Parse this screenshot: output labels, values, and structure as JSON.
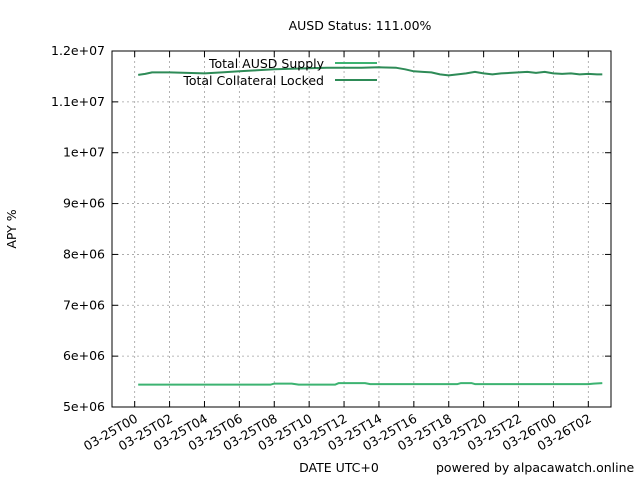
{
  "chart_data": {
    "type": "line",
    "title": "AUSD Status: 111.00%",
    "xlabel": "DATE UTC+0",
    "ylabel": "APY %",
    "footer": "powered by alpacawatch.online",
    "grid": true,
    "legend_position": "top-left",
    "x_ticks": [
      "03-25T00",
      "03-25T02",
      "03-25T04",
      "03-25T06",
      "03-25T08",
      "03-25T10",
      "03-25T12",
      "03-25T14",
      "03-25T16",
      "03-25T18",
      "03-25T20",
      "03-25T22",
      "03-26T00",
      "03-26T02"
    ],
    "xlim_hours": [
      -1.3,
      27.3
    ],
    "y_ticks": [
      "5e+06",
      "6e+06",
      "7e+06",
      "8e+06",
      "9e+06",
      "1e+07",
      "1.1e+07",
      "1.2e+07"
    ],
    "ylim": [
      5000000,
      12000000
    ],
    "series": [
      {
        "name": "Total AUSD Supply",
        "color": "#3cb371",
        "x_hours": [
          0.2,
          7.8,
          8.0,
          9.0,
          9.4,
          11.5,
          11.7,
          13.2,
          13.5,
          18.5,
          18.7,
          19.3,
          19.5,
          26.0,
          26.3,
          26.8
        ],
        "values": [
          5440000,
          5440000,
          5460000,
          5460000,
          5440000,
          5440000,
          5470000,
          5470000,
          5450000,
          5450000,
          5470000,
          5470000,
          5450000,
          5450000,
          5460000,
          5470000
        ]
      },
      {
        "name": "Total Collateral Locked",
        "color": "#2e8b57",
        "x_hours": [
          0.2,
          0.6,
          1.0,
          2.0,
          3.0,
          4.0,
          5.0,
          6.0,
          7.0,
          8.0,
          9.0,
          10.0,
          11.0,
          12.0,
          13.0,
          14.0,
          15.0,
          15.5,
          16.0,
          16.5,
          17.0,
          17.5,
          18.0,
          18.5,
          19.0,
          19.5,
          20.0,
          20.5,
          21.0,
          21.5,
          22.0,
          22.5,
          23.0,
          23.5,
          24.0,
          24.5,
          25.0,
          25.5,
          26.0,
          26.5,
          26.8
        ],
        "values": [
          11530000,
          11550000,
          11580000,
          11580000,
          11570000,
          11560000,
          11580000,
          11600000,
          11620000,
          11640000,
          11650000,
          11660000,
          11670000,
          11670000,
          11670000,
          11680000,
          11670000,
          11640000,
          11600000,
          11590000,
          11580000,
          11540000,
          11520000,
          11540000,
          11560000,
          11590000,
          11560000,
          11540000,
          11560000,
          11570000,
          11580000,
          11590000,
          11570000,
          11590000,
          11560000,
          11550000,
          11560000,
          11540000,
          11550000,
          11540000,
          11540000
        ]
      }
    ]
  }
}
